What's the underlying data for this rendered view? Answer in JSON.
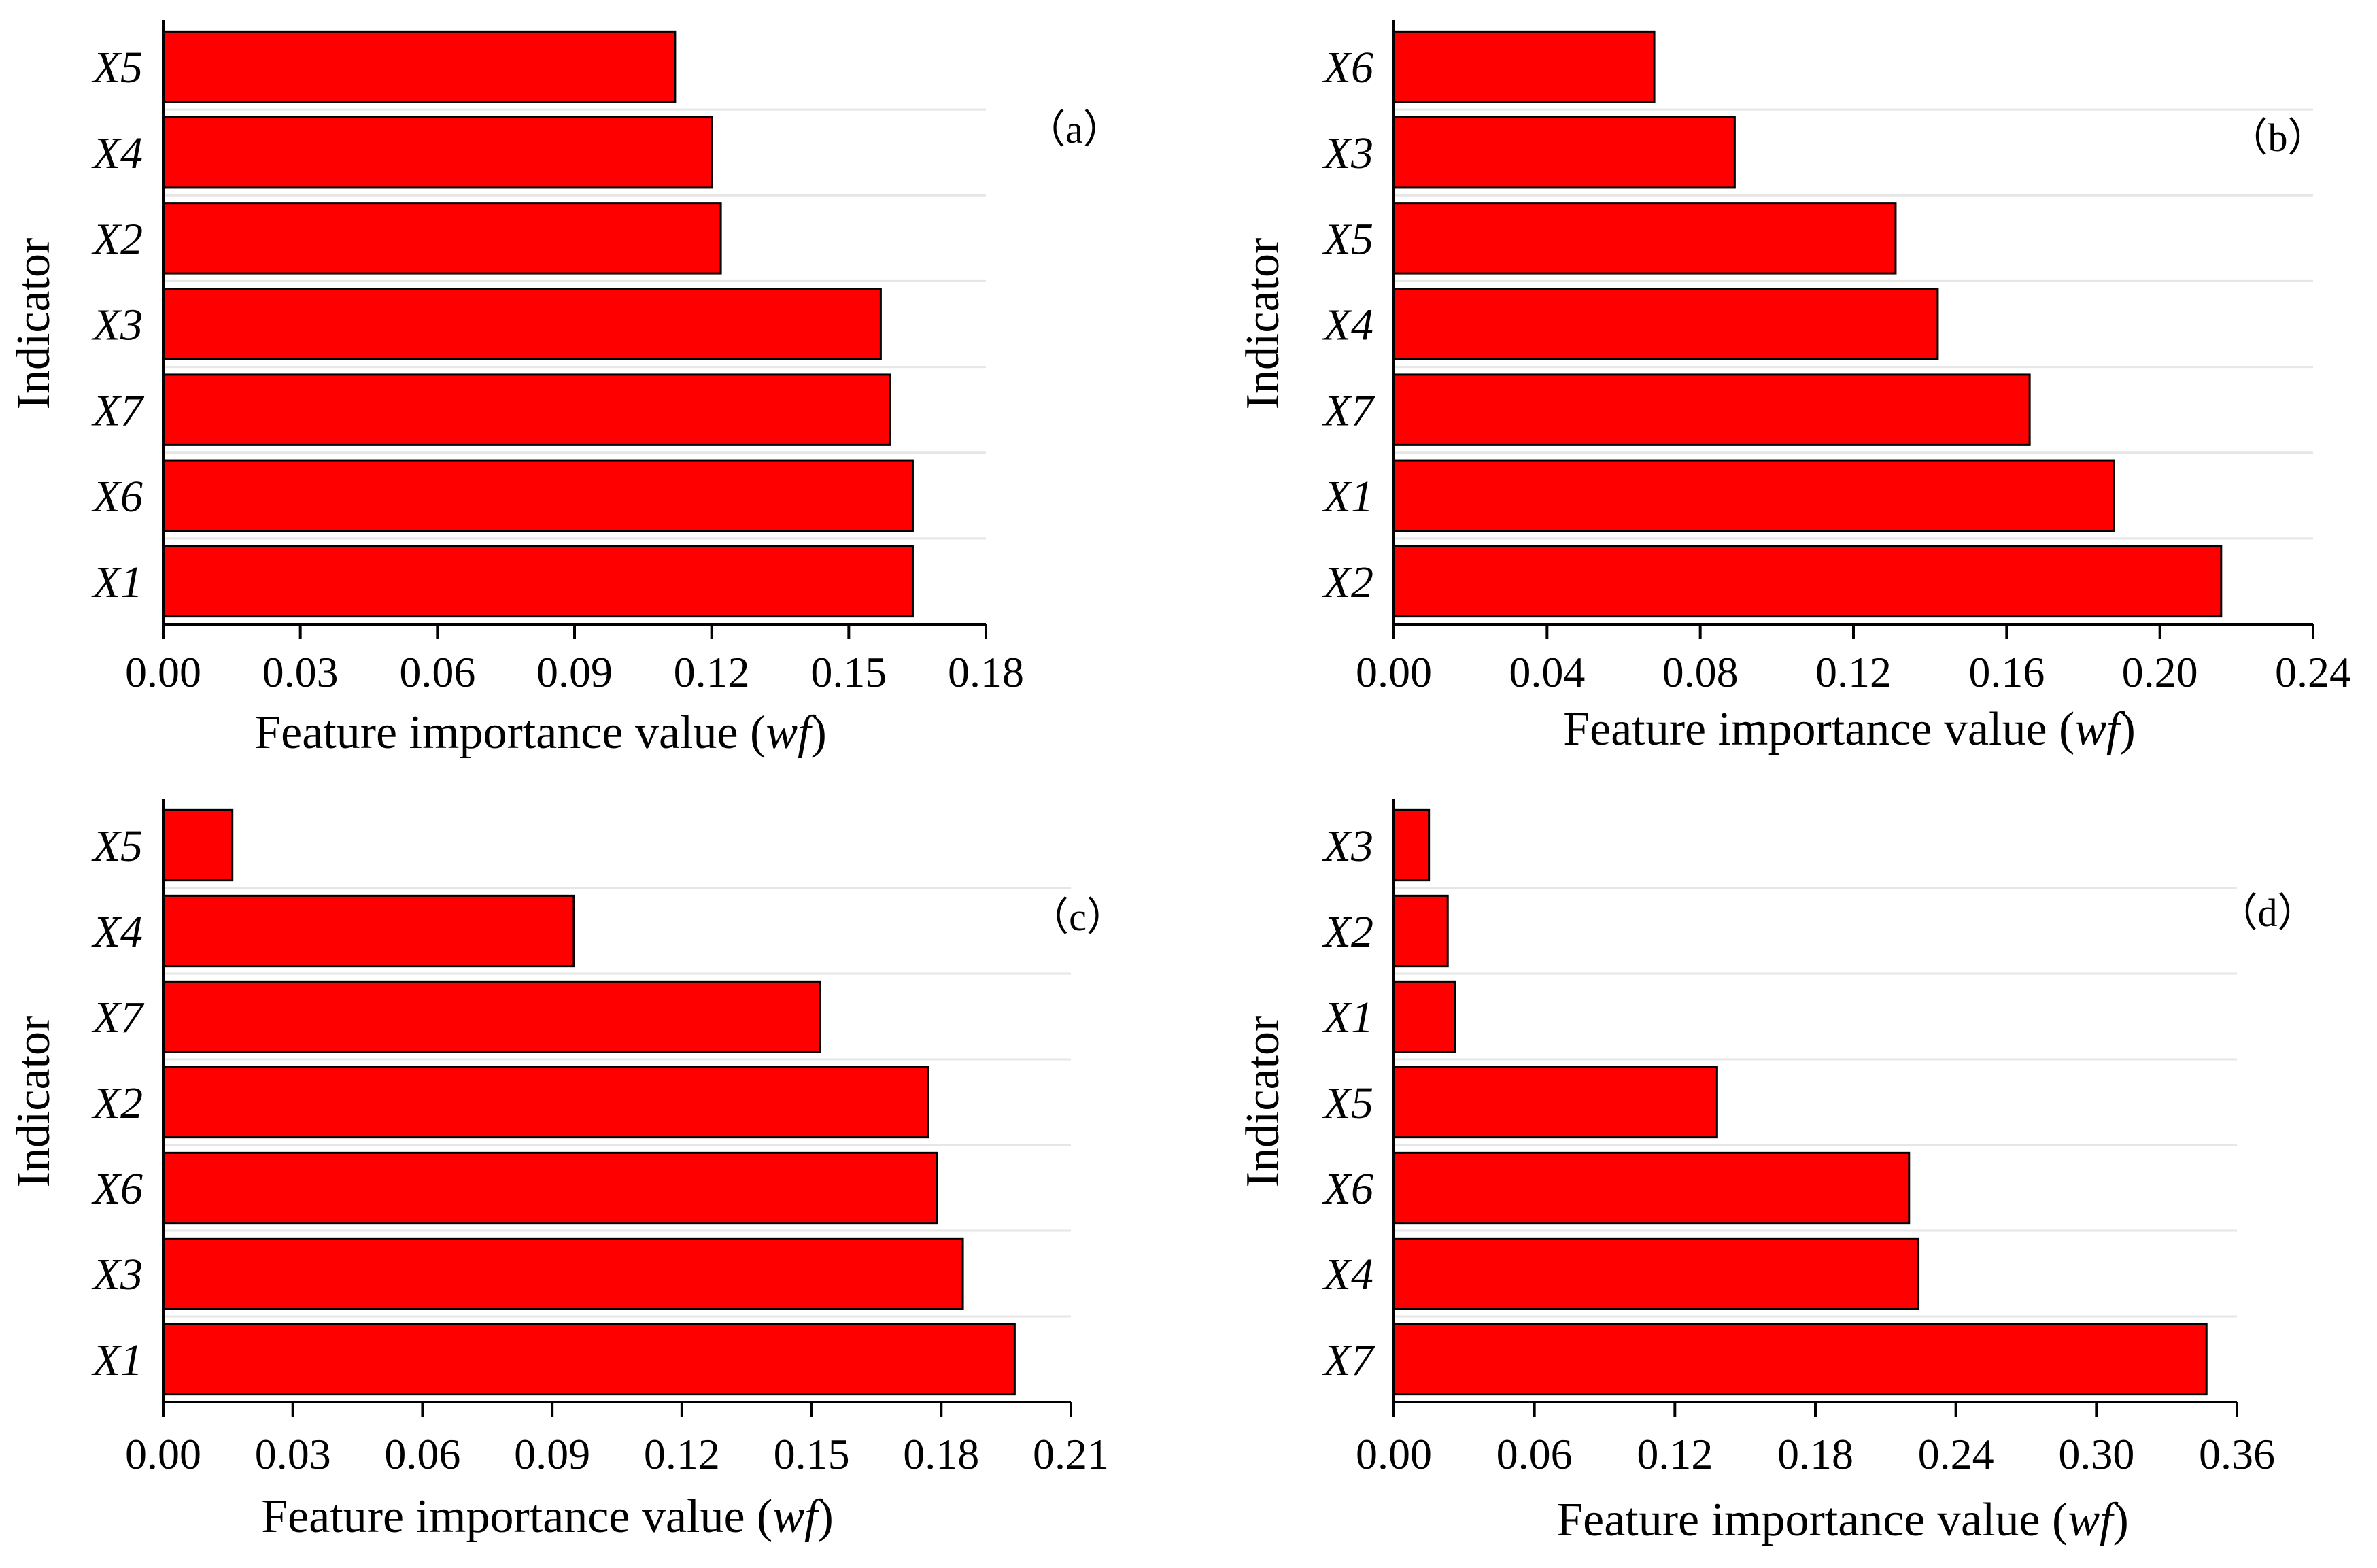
{
  "chart_data": [
    {
      "type": "bar",
      "orientation": "horizontal",
      "panel_label": "（a）",
      "categories": [
        "X5",
        "X4",
        "X2",
        "X3",
        "X7",
        "X6",
        "X1"
      ],
      "values": [
        0.112,
        0.12,
        0.122,
        0.157,
        0.159,
        0.164,
        0.164
      ],
      "xlim": [
        0,
        0.18
      ],
      "xticks": [
        "0.00",
        "0.03",
        "0.06",
        "0.09",
        "0.12",
        "0.15",
        "0.18"
      ],
      "xlabel_prefix": "Feature importance value (",
      "xlabel_italic": "wf",
      "xlabel_suffix": ")",
      "ylabel": "Indicator",
      "bar_color": "#ff0000"
    },
    {
      "type": "bar",
      "orientation": "horizontal",
      "panel_label": "（b）",
      "categories": [
        "X6",
        "X3",
        "X5",
        "X4",
        "X7",
        "X1",
        "X2"
      ],
      "values": [
        0.068,
        0.089,
        0.131,
        0.142,
        0.166,
        0.188,
        0.216
      ],
      "xlim": [
        0,
        0.24
      ],
      "xticks": [
        "0.00",
        "0.04",
        "0.08",
        "0.12",
        "0.16",
        "0.20",
        "0.24"
      ],
      "xlabel_prefix": "Feature importance value (",
      "xlabel_italic": "wf",
      "xlabel_suffix": ")",
      "ylabel": "Indicator",
      "bar_color": "#ff0000"
    },
    {
      "type": "bar",
      "orientation": "horizontal",
      "panel_label": "（c）",
      "categories": [
        "X5",
        "X4",
        "X7",
        "X2",
        "X6",
        "X3",
        "X1"
      ],
      "values": [
        0.016,
        0.095,
        0.152,
        0.177,
        0.179,
        0.185,
        0.197
      ],
      "xlim": [
        0,
        0.21
      ],
      "xticks": [
        "0.00",
        "0.03",
        "0.06",
        "0.09",
        "0.12",
        "0.15",
        "0.18",
        "0.21"
      ],
      "xlabel_prefix": "Feature importance value (",
      "xlabel_italic": "wf",
      "xlabel_suffix": ")",
      "ylabel": "Indicator",
      "bar_color": "#ff0000"
    },
    {
      "type": "bar",
      "orientation": "horizontal",
      "panel_label": "（d）",
      "categories": [
        "X3",
        "X2",
        "X1",
        "X5",
        "X6",
        "X4",
        "X7"
      ],
      "values": [
        0.015,
        0.023,
        0.026,
        0.138,
        0.22,
        0.224,
        0.347
      ],
      "xlim": [
        0,
        0.36
      ],
      "xticks": [
        "0.00",
        "0.06",
        "0.12",
        "0.18",
        "0.24",
        "0.30",
        "0.36"
      ],
      "xlabel_prefix": "Feature importance value (",
      "xlabel_italic": "wf",
      "xlabel_suffix": ")",
      "ylabel": "Indicator",
      "bar_color": "#ff0000"
    }
  ]
}
